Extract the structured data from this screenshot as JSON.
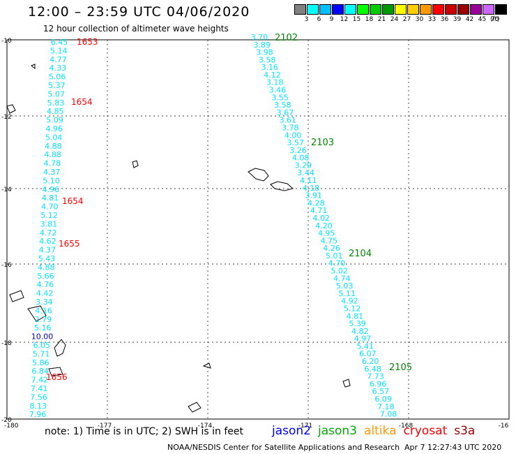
{
  "header": {
    "title": "12:00 – 23:59 UTC 04/06/2020",
    "subtitle": "12 hour collection of altimeter wave heights"
  },
  "legend": {
    "labels": [
      "3",
      "6",
      "9",
      "12",
      "15",
      "18",
      "21",
      "24",
      "27",
      "30",
      "33",
      "36",
      "39",
      "42",
      "45",
      "70"
    ],
    "colors": [
      "#808080",
      "#00ffff",
      "#00bfff",
      "#0000ff",
      "#00ffff",
      "#00ff00",
      "#00cc00",
      "#009900",
      "#ffff00",
      "#ffcc00",
      "#ff9900",
      "#ff0000",
      "#cc0000",
      "#990000",
      "#990099",
      "#cc66ff",
      "#000000"
    ],
    "unit": "(ft)"
  },
  "axes": {
    "x_ticks": [
      "-180",
      "-177",
      "-174",
      "-171",
      "-168",
      "-16"
    ],
    "y_ticks": [
      "-10",
      "-12",
      "-14",
      "-16",
      "-18",
      "-20"
    ]
  },
  "tracks": {
    "west": {
      "color": "#00e5ff",
      "values": [
        "6.45",
        "5.14",
        "4.77",
        "4.33",
        "5.06",
        "5.37",
        "5.07",
        "5.83",
        "4.85",
        "5.09",
        "4.96",
        "5.04",
        "4.88",
        "4.88",
        "4.78",
        "4.37",
        "5.10",
        "4.96",
        "4.81",
        "4.70",
        "5.12",
        "3.81",
        "4.72",
        "4.62",
        "4.37",
        "5.43",
        "4.88",
        "5.66",
        "4.76",
        "4.42",
        "3.34",
        "4.16",
        "2.79",
        "5.16",
        "10.00",
        "6.05",
        "5.71",
        "5.86",
        "6.84",
        "7.42",
        "7.41",
        "7.56",
        "8.13",
        "7.96"
      ],
      "time_labels": [
        "1653",
        "1654",
        "1654",
        "1655",
        "1656"
      ]
    },
    "east": {
      "color": "#00e5ff",
      "values": [
        "3.70",
        "3.89",
        "3.98",
        "3.58",
        "3.16",
        "4.12",
        "3.18",
        "3.46",
        "3.55",
        "3.58",
        "3.67",
        "3.61",
        "3.78",
        "4.00",
        "3.57",
        "3.26",
        "4.08",
        "3.29",
        "3.44",
        "4.11",
        "4.18",
        "3.91",
        "4.28",
        "4.71",
        "4.02",
        "4.20",
        "4.95",
        "4.75",
        "4.26",
        "5.01",
        "4.70",
        "5.02",
        "4.74",
        "5.03",
        "5.11",
        "4.92",
        "5.12",
        "4.81",
        "5.39",
        "4.82",
        "4.97",
        "5.41",
        "6.07",
        "6.20",
        "6.48",
        "7.73",
        "6.96",
        "6.57",
        "6.09",
        "7.18",
        "7.08"
      ],
      "time_labels": [
        "2102",
        "2103",
        "2104",
        "2105"
      ]
    }
  },
  "time_color": "#ff0000",
  "time_color_east": "#008800",
  "footer": {
    "note": "note:  1) Time is in UTC;  2) SWH is in feet",
    "satellites": [
      {
        "name": "jason2",
        "color": "#0000ff"
      },
      {
        "name": "jason3",
        "color": "#00aa00"
      },
      {
        "name": "altika",
        "color": "#ff9900"
      },
      {
        "name": "cryosat",
        "color": "#ff0000"
      },
      {
        "name": "s3a",
        "color": "#990000"
      }
    ],
    "credit": "NOAA/NESDIS Center for Satellite Applications and Research",
    "timestamp": "Apr  7 12:27:43 UTC 2020"
  }
}
